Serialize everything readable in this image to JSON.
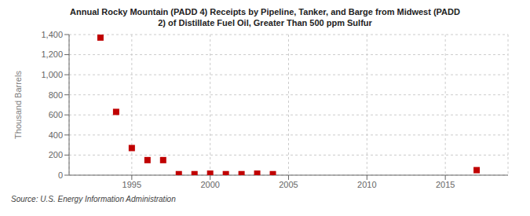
{
  "chart_data": {
    "type": "scatter",
    "title": "Annual Rocky Mountain (PADD 4) Receipts by Pipeline, Tanker, and Barge from Midwest (PADD\n2) of Distillate Fuel Oil, Greater Than 500 ppm Sulfur",
    "y_label": "Thousand Barrels",
    "annotations": [
      "Source: U.S. Energy Information Administration"
    ],
    "x": [
      1993,
      1994,
      1995,
      1996,
      1997,
      1998,
      1999,
      2000,
      2001,
      2002,
      2003,
      2004,
      2017
    ],
    "values": [
      1370,
      630,
      270,
      150,
      150,
      10,
      10,
      15,
      10,
      10,
      15,
      10,
      50
    ],
    "color": "#c00000",
    "marker": "square",
    "xlim": [
      1991,
      2019
    ],
    "xticks": [
      1995,
      2000,
      2005,
      2010,
      2015
    ],
    "ylim": [
      0,
      1400
    ],
    "yticks": [
      0,
      200,
      400,
      600,
      800,
      {
        "value": 1000,
        "label": "1,000"
      },
      {
        "value": 1200,
        "label": "1,200"
      },
      {
        "value": 1400,
        "label": "1,400"
      }
    ],
    "grid": true
  }
}
